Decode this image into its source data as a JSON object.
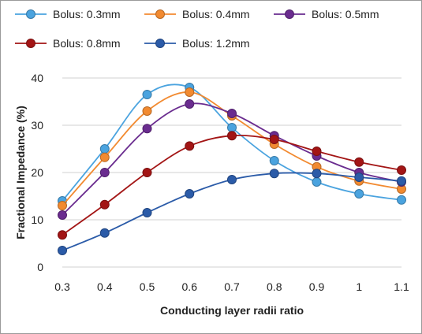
{
  "chart_data": {
    "type": "line",
    "title": "",
    "xlabel": "Conducting layer radii ratio",
    "ylabel": "Fractional Impedance (%)",
    "x": [
      0.3,
      0.4,
      0.5,
      0.6,
      0.7,
      0.8,
      0.9,
      1,
      1.1
    ],
    "x_tick_labels": [
      "0.3",
      "0.4",
      "0.5",
      "0.6",
      "0.7",
      "0.8",
      "0.9",
      "1",
      "1.1"
    ],
    "xlim": [
      0.3,
      1.1
    ],
    "ylim": [
      0,
      40
    ],
    "y_ticks": [
      0,
      10,
      20,
      30,
      40
    ],
    "y_tick_labels": [
      "0",
      "10",
      "20",
      "30",
      "40"
    ],
    "grid": "horizontal",
    "legend_position": "top",
    "series": [
      {
        "name": "Bolus: 0.3mm",
        "color": "#4aa3df",
        "values": [
          14,
          25,
          36.5,
          38,
          29.5,
          22.5,
          18,
          15.5,
          14.2
        ]
      },
      {
        "name": "Bolus: 0.4mm",
        "color": "#f28a30",
        "values": [
          13,
          23.2,
          33,
          37,
          32,
          26,
          21.2,
          18.2,
          16.5
        ]
      },
      {
        "name": "Bolus: 0.5mm",
        "color": "#6a2c8f",
        "values": [
          11,
          20,
          29.3,
          34.5,
          32.5,
          27.8,
          23.5,
          20,
          18
        ]
      },
      {
        "name": "Bolus: 0.8mm",
        "color": "#a31515",
        "values": [
          6.8,
          13.2,
          20,
          25.6,
          27.8,
          27,
          24.5,
          22.2,
          20.5
        ]
      },
      {
        "name": "Bolus: 1.2mm",
        "color": "#2b5ba8",
        "values": [
          3.5,
          7.2,
          11.5,
          15.5,
          18.5,
          19.8,
          19.8,
          19,
          18.2
        ]
      }
    ]
  }
}
